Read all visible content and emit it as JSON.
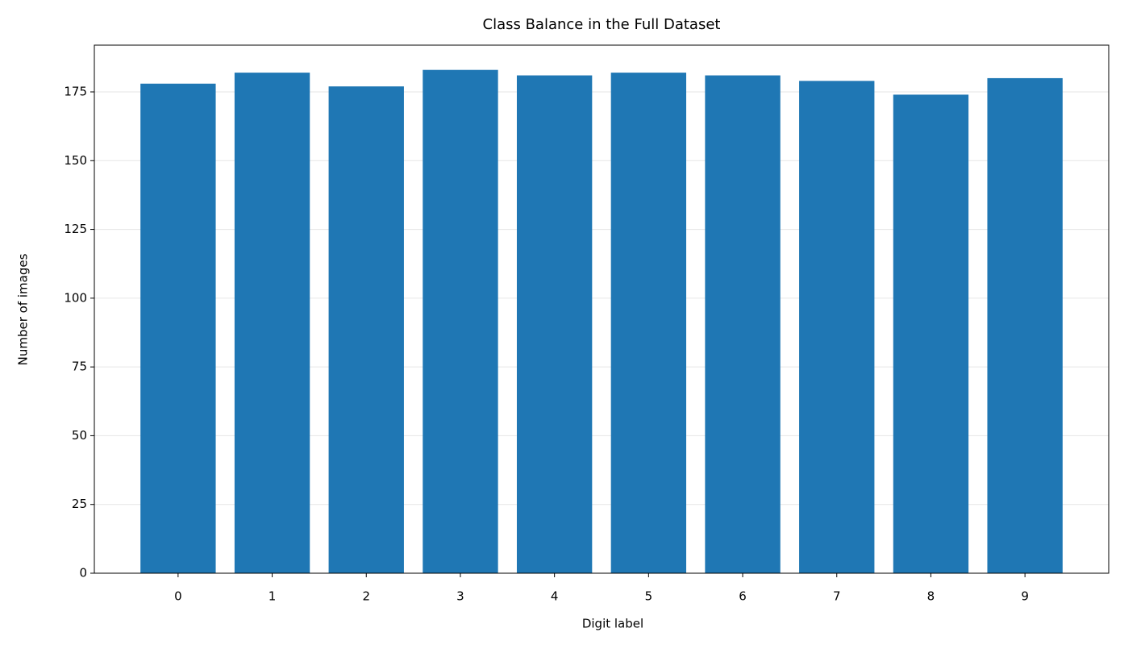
{
  "chart_data": {
    "type": "bar",
    "title": "Class Balance in the Full Dataset",
    "x_label": "Digit label",
    "y_label": "Number of images",
    "categories": [
      "0",
      "1",
      "2",
      "3",
      "4",
      "5",
      "6",
      "7",
      "8",
      "9"
    ],
    "values": [
      178,
      182,
      177,
      183,
      181,
      182,
      181,
      179,
      174,
      180
    ],
    "color": "#1f77b4",
    "ylim": [
      0,
      192
    ],
    "yticks": [
      0,
      25,
      50,
      75,
      100,
      125,
      150,
      175
    ],
    "grid": true
  }
}
